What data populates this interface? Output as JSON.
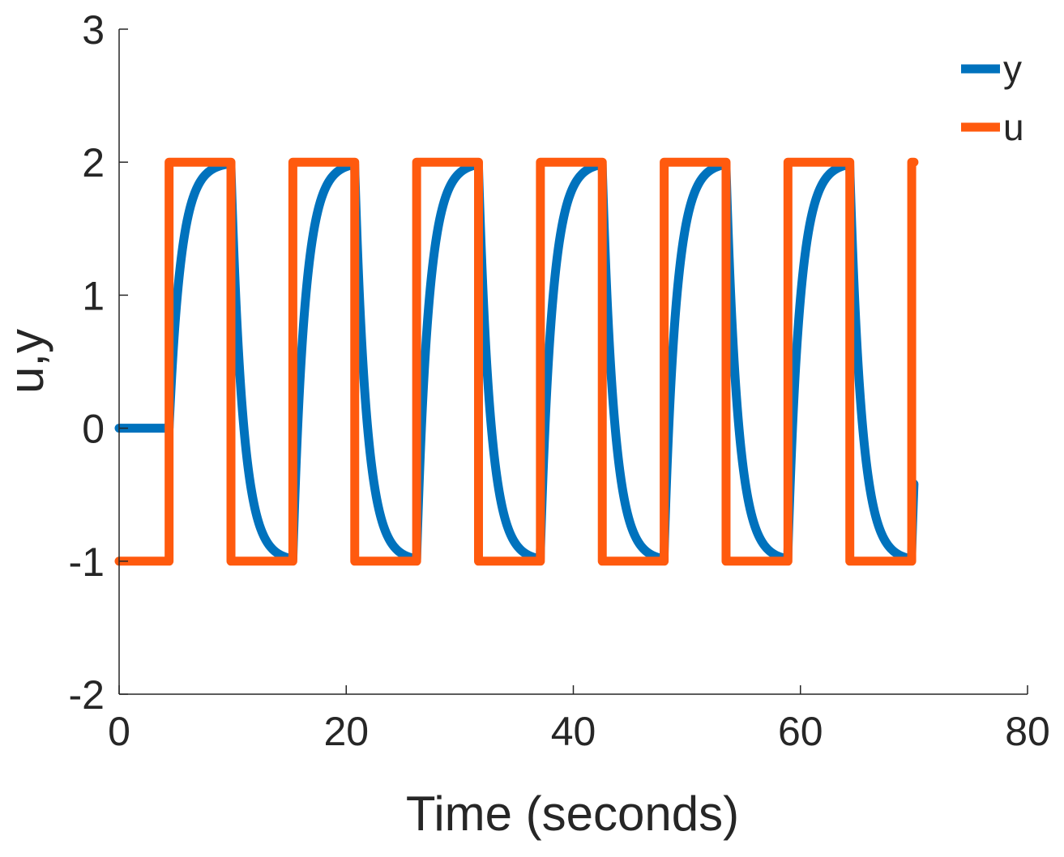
{
  "chart_data": {
    "type": "line",
    "title": "",
    "xlabel": "Time (seconds)",
    "ylabel": "u,y",
    "xlim": [
      0,
      80
    ],
    "ylim": [
      -2,
      3
    ],
    "xticks": [
      0,
      20,
      40,
      60,
      80
    ],
    "xtick_labels": [
      "0",
      "20",
      "40",
      "60",
      "80"
    ],
    "yticks": [
      -2,
      -1,
      0,
      1,
      2,
      3
    ],
    "ytick_labels": [
      "-2",
      "-1",
      "0",
      "1",
      "2",
      "3"
    ],
    "legend_position": "top-right",
    "square_wave": {
      "start_time": 4.4,
      "first_switch": 4.4,
      "switch_interval": 5.45,
      "end_time": 70,
      "high": 2,
      "low": -1,
      "initial": -1
    },
    "response": {
      "delay": 4.4,
      "time_constant": 1.05,
      "initial": 0,
      "end_time": 70
    },
    "series": [
      {
        "name": "y",
        "color": "#0072BD"
      },
      {
        "name": "u",
        "color": "#FF5A0E"
      }
    ]
  }
}
